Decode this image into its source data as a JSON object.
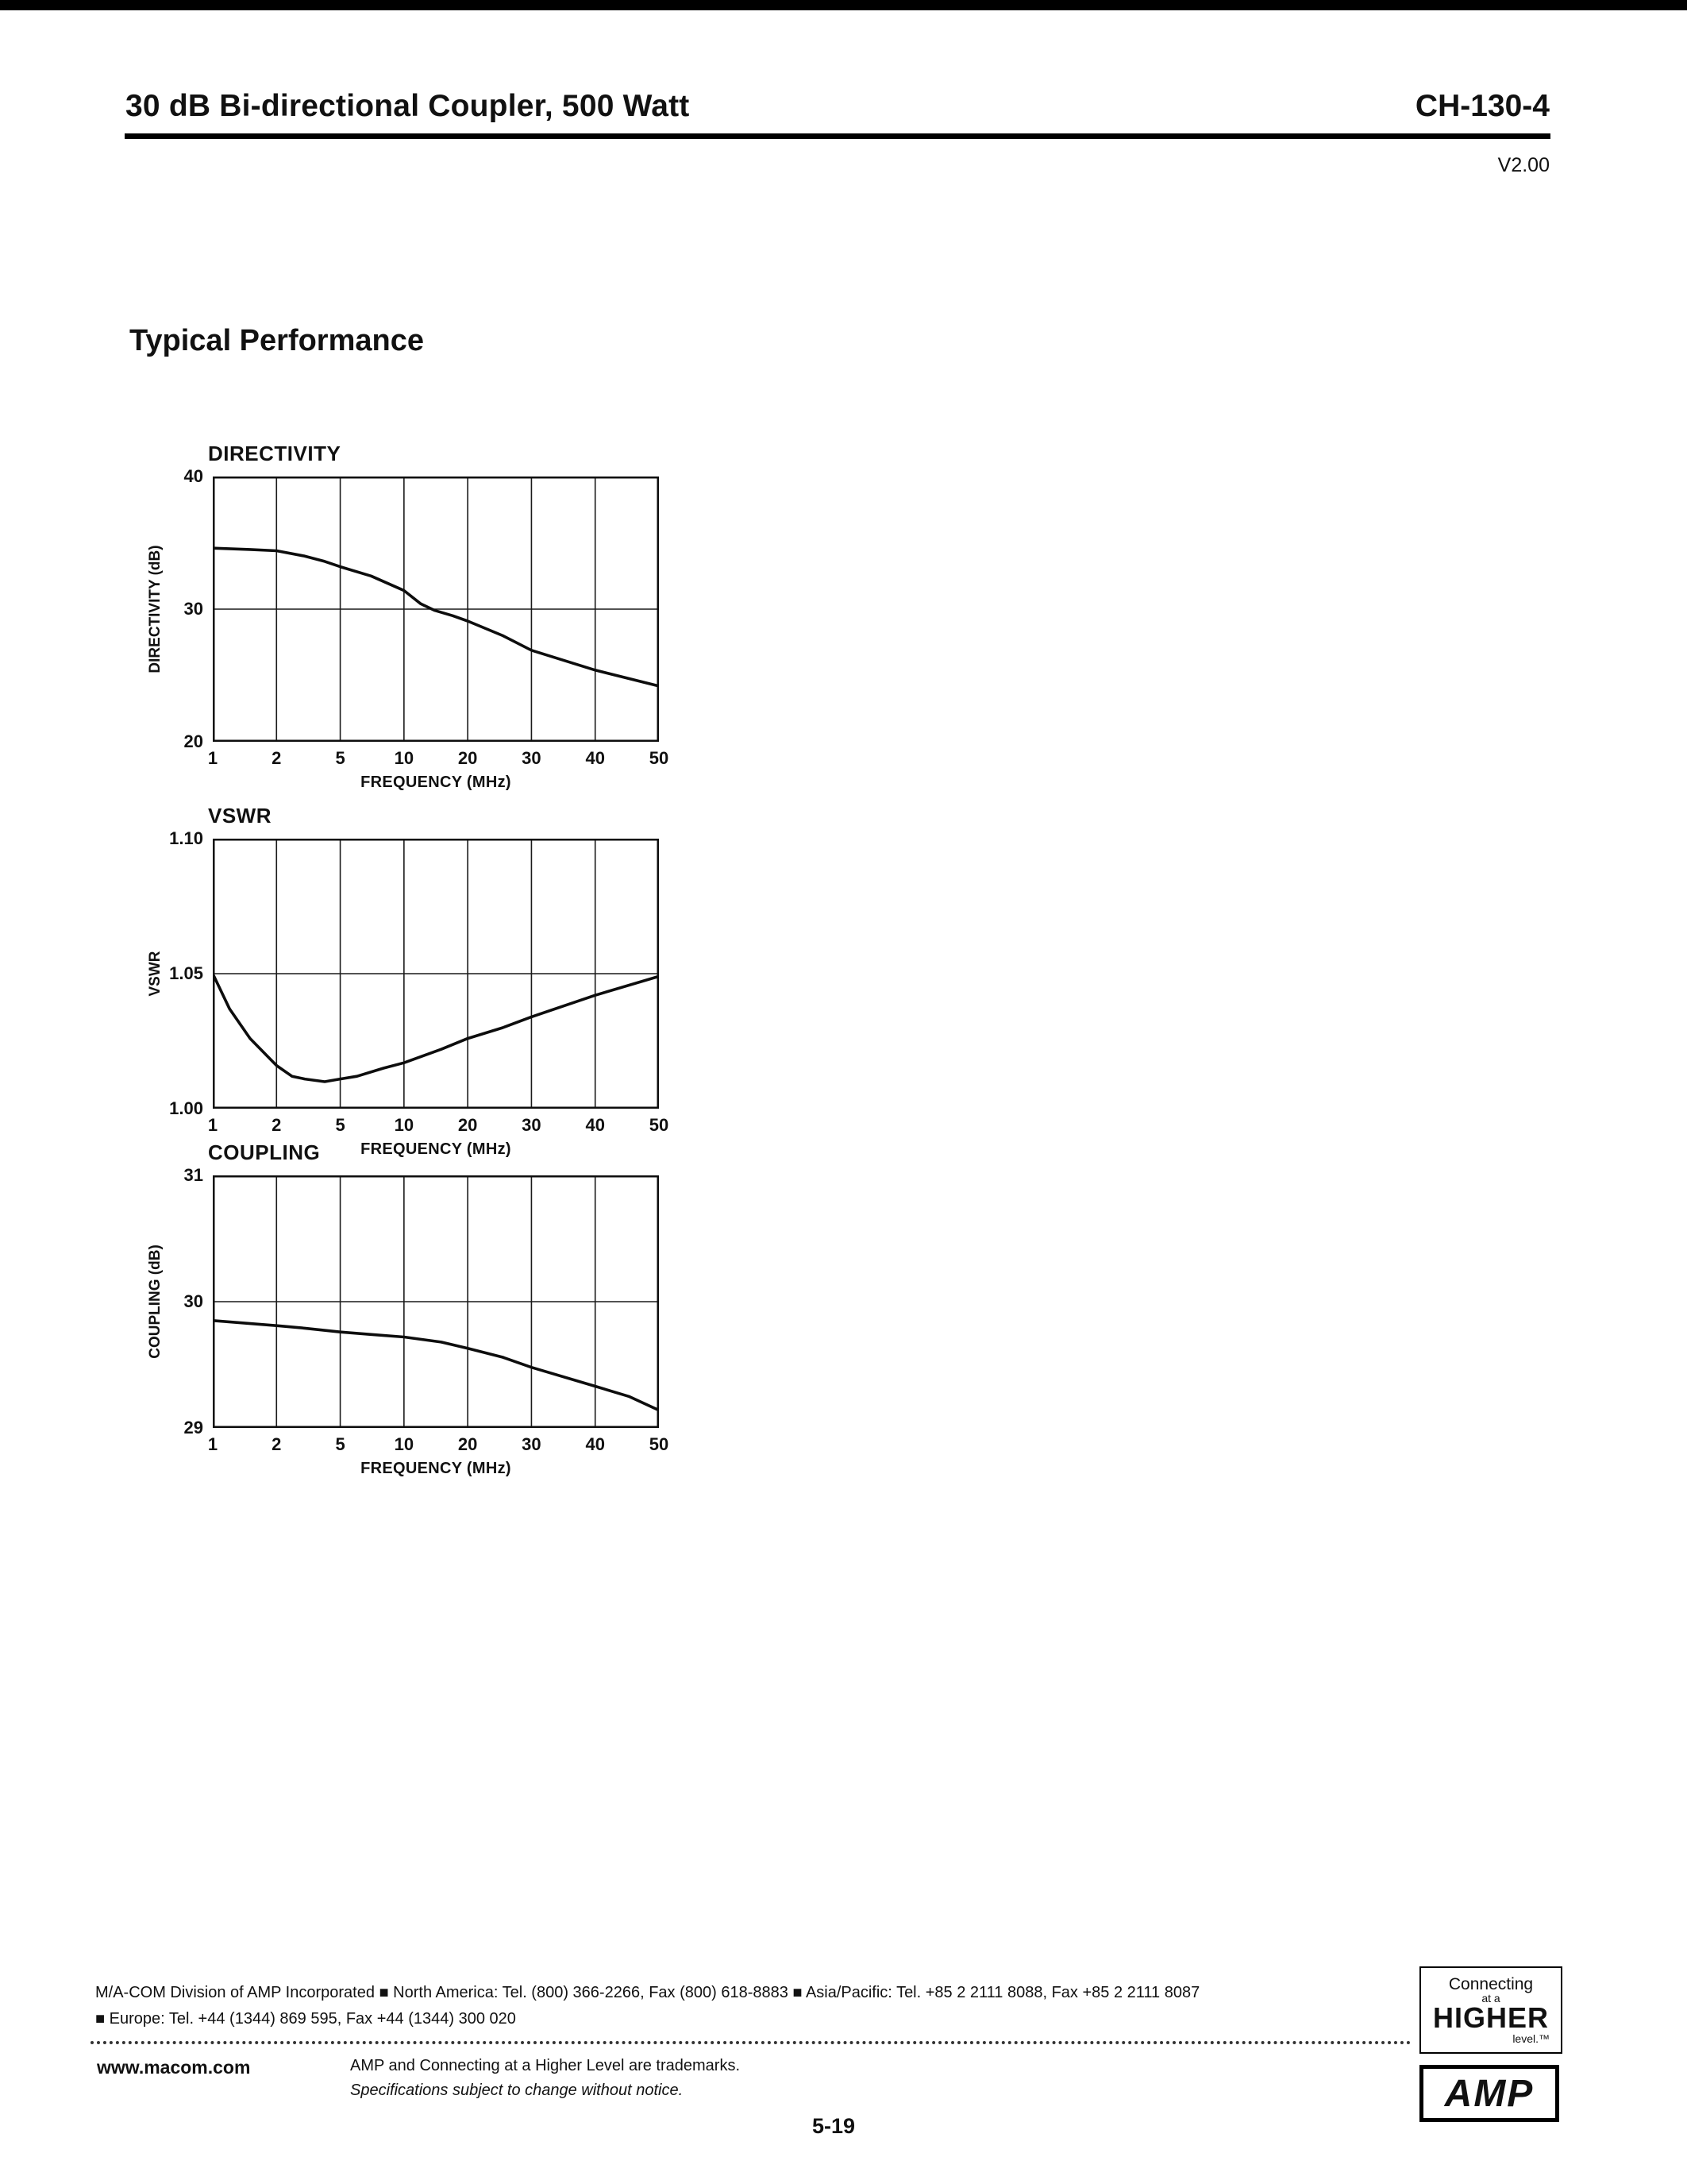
{
  "header": {
    "title": "30 dB Bi-directional Coupler, 500 Watt",
    "doc_number": "CH-130-4",
    "version": "V2.00"
  },
  "section_title": "Typical Performance",
  "chart_data": [
    {
      "type": "line",
      "title": "DIRECTIVITY",
      "ylabel": "DIRECTIVITY (dB)",
      "xlabel": "FREQUENCY (MHz)",
      "x_scale": "log-even-ticks",
      "x_ticks": [
        1,
        2,
        5,
        10,
        20,
        30,
        40,
        50
      ],
      "ylim": [
        20,
        40
      ],
      "y_ticks": [
        40,
        30,
        20
      ],
      "y_tick_labels": [
        "40",
        "30",
        "20"
      ],
      "grid_y": [
        30
      ],
      "legend": "none",
      "series": [
        {
          "name": "Directivity",
          "points": [
            [
              1,
              34.6
            ],
            [
              1.5,
              34.5
            ],
            [
              2,
              34.4
            ],
            [
              3,
              34.0
            ],
            [
              4,
              33.6
            ],
            [
              5,
              33.2
            ],
            [
              7,
              32.5
            ],
            [
              10,
              31.4
            ],
            [
              12,
              30.4
            ],
            [
              14,
              29.9
            ],
            [
              17,
              29.5
            ],
            [
              20,
              29.1
            ],
            [
              25,
              28.0
            ],
            [
              30,
              26.9
            ],
            [
              40,
              25.4
            ],
            [
              50,
              24.2
            ]
          ]
        }
      ]
    },
    {
      "type": "line",
      "title": "VSWR",
      "ylabel": "VSWR",
      "xlabel": "FREQUENCY (MHz)",
      "x_scale": "log-even-ticks",
      "x_ticks": [
        1,
        2,
        5,
        10,
        20,
        30,
        40,
        50
      ],
      "ylim": [
        1.0,
        1.1
      ],
      "y_ticks": [
        1.1,
        1.05,
        1.0
      ],
      "y_tick_labels": [
        "1.10",
        "1.05",
        "1.00"
      ],
      "grid_y": [
        1.05
      ],
      "legend": "none",
      "series": [
        {
          "name": "VSWR",
          "points": [
            [
              1,
              1.05
            ],
            [
              1.2,
              1.037
            ],
            [
              1.5,
              1.026
            ],
            [
              2,
              1.016
            ],
            [
              2.5,
              1.012
            ],
            [
              3,
              1.011
            ],
            [
              4,
              1.01
            ],
            [
              5,
              1.011
            ],
            [
              6,
              1.012
            ],
            [
              8,
              1.015
            ],
            [
              10,
              1.017
            ],
            [
              15,
              1.022
            ],
            [
              20,
              1.026
            ],
            [
              25,
              1.03
            ],
            [
              30,
              1.034
            ],
            [
              40,
              1.042
            ],
            [
              50,
              1.049
            ]
          ]
        }
      ]
    },
    {
      "type": "line",
      "title": "COUPLING",
      "ylabel": "COUPLING (dB)",
      "xlabel": "FREQUENCY (MHz)",
      "x_scale": "log-even-ticks",
      "x_ticks": [
        1,
        2,
        5,
        10,
        20,
        30,
        40,
        50
      ],
      "ylim": [
        29,
        31
      ],
      "y_ticks": [
        31,
        30,
        29
      ],
      "y_tick_labels": [
        "31",
        "30",
        "29"
      ],
      "grid_y": [
        30
      ],
      "legend": "none",
      "series": [
        {
          "name": "Coupling",
          "points": [
            [
              1,
              29.85
            ],
            [
              2,
              29.81
            ],
            [
              3,
              29.79
            ],
            [
              5,
              29.76
            ],
            [
              7,
              29.74
            ],
            [
              10,
              29.72
            ],
            [
              15,
              29.68
            ],
            [
              20,
              29.63
            ],
            [
              25,
              29.56
            ],
            [
              30,
              29.48
            ],
            [
              40,
              29.33
            ],
            [
              45,
              29.25
            ],
            [
              50,
              29.14
            ]
          ]
        }
      ]
    }
  ],
  "footer": {
    "line1": "M/A-COM Division of AMP Incorporated  ■  North America:  Tel. (800) 366-2266, Fax (800) 618-8883  ■  Asia/Pacific:  Tel. +85 2 2111 8088, Fax +85 2 2111 8087",
    "line2": "■  Europe:  Tel. +44 (1344) 869 595, Fax +44 (1344) 300 020",
    "website": "www.macom.com",
    "trademark_line": "AMP and Connecting at a Higher Level are trademarks.",
    "notice_line": "Specifications subject to change without notice.",
    "page_number": "5-19",
    "logo_connecting": {
      "line1": "Connecting",
      "line2": "at a",
      "line3": "HIGHER",
      "line4": "level.™"
    },
    "logo_amp": "AMP"
  }
}
